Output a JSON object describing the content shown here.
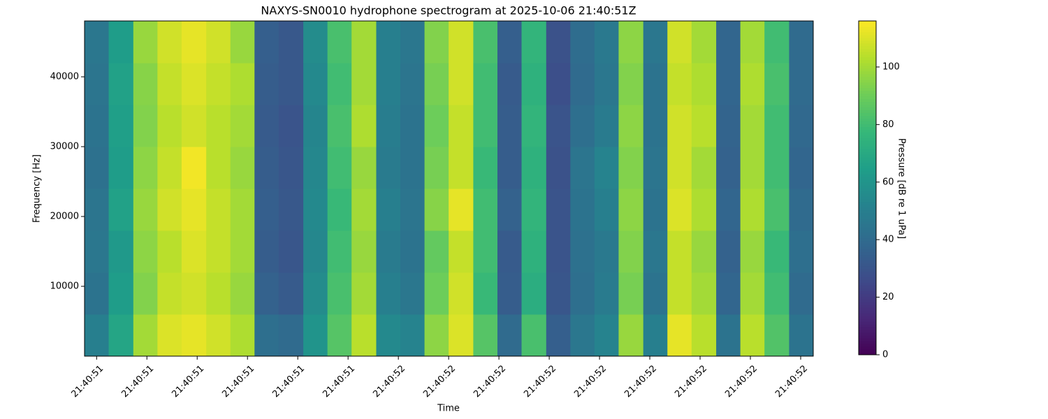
{
  "chart_data": {
    "type": "heatmap",
    "title": "NAXYS-SN0010 hydrophone spectrogram at 2025-10-06 21:40:51Z",
    "x_label": "Time",
    "y_label": "Frequency [Hz]",
    "colorbar_label": "Pressure [dB re 1 uPa]",
    "colormap": "viridis",
    "xlim": [
      51.376,
      52.825
    ],
    "xticks": [
      {
        "value": 51.4,
        "label": "21:40:51"
      },
      {
        "value": 51.5,
        "label": "21:40:51"
      },
      {
        "value": 51.6,
        "label": "21:40:51"
      },
      {
        "value": 51.7,
        "label": "21:40:51"
      },
      {
        "value": 51.8,
        "label": "21:40:51"
      },
      {
        "value": 51.9,
        "label": "21:40:51"
      },
      {
        "value": 52.0,
        "label": "21:40:52"
      },
      {
        "value": 52.1,
        "label": "21:40:52"
      },
      {
        "value": 52.2,
        "label": "21:40:52"
      },
      {
        "value": 52.3,
        "label": "21:40:52"
      },
      {
        "value": 52.4,
        "label": "21:40:52"
      },
      {
        "value": 52.5,
        "label": "21:40:52"
      },
      {
        "value": 52.6,
        "label": "21:40:52"
      },
      {
        "value": 52.7,
        "label": "21:40:52"
      },
      {
        "value": 52.8,
        "label": "21:40:52"
      }
    ],
    "ylim": [
      0,
      48000
    ],
    "yticks": [
      10000,
      20000,
      30000,
      40000
    ],
    "clim": [
      0,
      116
    ],
    "cticks": [
      0,
      20,
      40,
      60,
      80,
      100
    ],
    "xbins": [
      51.376,
      51.424,
      51.473,
      51.521,
      51.569,
      51.618,
      51.666,
      51.714,
      51.762,
      51.811,
      51.859,
      51.907,
      51.956,
      52.004,
      52.052,
      52.1,
      52.149,
      52.197,
      52.245,
      52.294,
      52.342,
      52.39,
      52.438,
      52.487,
      52.535,
      52.583,
      52.632,
      52.68,
      52.728,
      52.777,
      52.825
    ],
    "ybins": [
      0,
      6000,
      12000,
      18000,
      24000,
      30000,
      36000,
      42000,
      48000
    ],
    "z": [
      [
        50,
        68,
        100,
        110,
        112,
        108,
        102,
        42,
        40,
        60,
        85,
        104,
        55,
        52,
        96,
        110,
        85,
        40,
        82,
        35,
        46,
        52,
        98,
        50,
        112,
        104,
        44,
        104,
        84,
        44
      ],
      [
        44,
        64,
        94,
        106,
        108,
        104,
        98,
        36,
        33,
        56,
        82,
        100,
        50,
        46,
        90,
        108,
        78,
        34,
        72,
        31,
        42,
        48,
        92,
        44,
        106,
        100,
        38,
        100,
        80,
        40
      ],
      [
        46,
        62,
        96,
        104,
        110,
        106,
        100,
        34,
        31,
        54,
        80,
        98,
        48,
        44,
        88,
        106,
        80,
        33,
        74,
        30,
        43,
        47,
        94,
        46,
        106,
        98,
        36,
        98,
        78,
        42
      ],
      [
        45,
        66,
        98,
        108,
        112,
        106,
        100,
        35,
        32,
        55,
        78,
        100,
        50,
        45,
        95,
        112,
        80,
        36,
        76,
        30,
        44,
        50,
        96,
        44,
        110,
        102,
        38,
        102,
        82,
        40
      ],
      [
        43,
        64,
        96,
        106,
        114,
        104,
        98,
        34,
        31,
        54,
        80,
        98,
        48,
        44,
        92,
        106,
        78,
        34,
        74,
        29,
        45,
        52,
        94,
        45,
        108,
        100,
        36,
        100,
        80,
        38
      ],
      [
        44,
        65,
        94,
        104,
        108,
        104,
        100,
        33,
        30,
        53,
        82,
        102,
        49,
        44,
        90,
        106,
        80,
        34,
        76,
        30,
        42,
        48,
        96,
        44,
        108,
        104,
        37,
        100,
        80,
        39
      ],
      [
        45,
        66,
        95,
        106,
        110,
        106,
        102,
        34,
        32,
        55,
        80,
        100,
        50,
        45,
        92,
        108,
        80,
        33,
        74,
        28,
        40,
        46,
        94,
        44,
        106,
        102,
        38,
        102,
        82,
        40
      ],
      [
        46,
        64,
        98,
        108,
        112,
        108,
        98,
        35,
        32,
        56,
        82,
        100,
        50,
        46,
        94,
        108,
        82,
        35,
        76,
        29,
        41,
        47,
        96,
        46,
        108,
        100,
        38,
        100,
        80,
        40
      ]
    ]
  }
}
